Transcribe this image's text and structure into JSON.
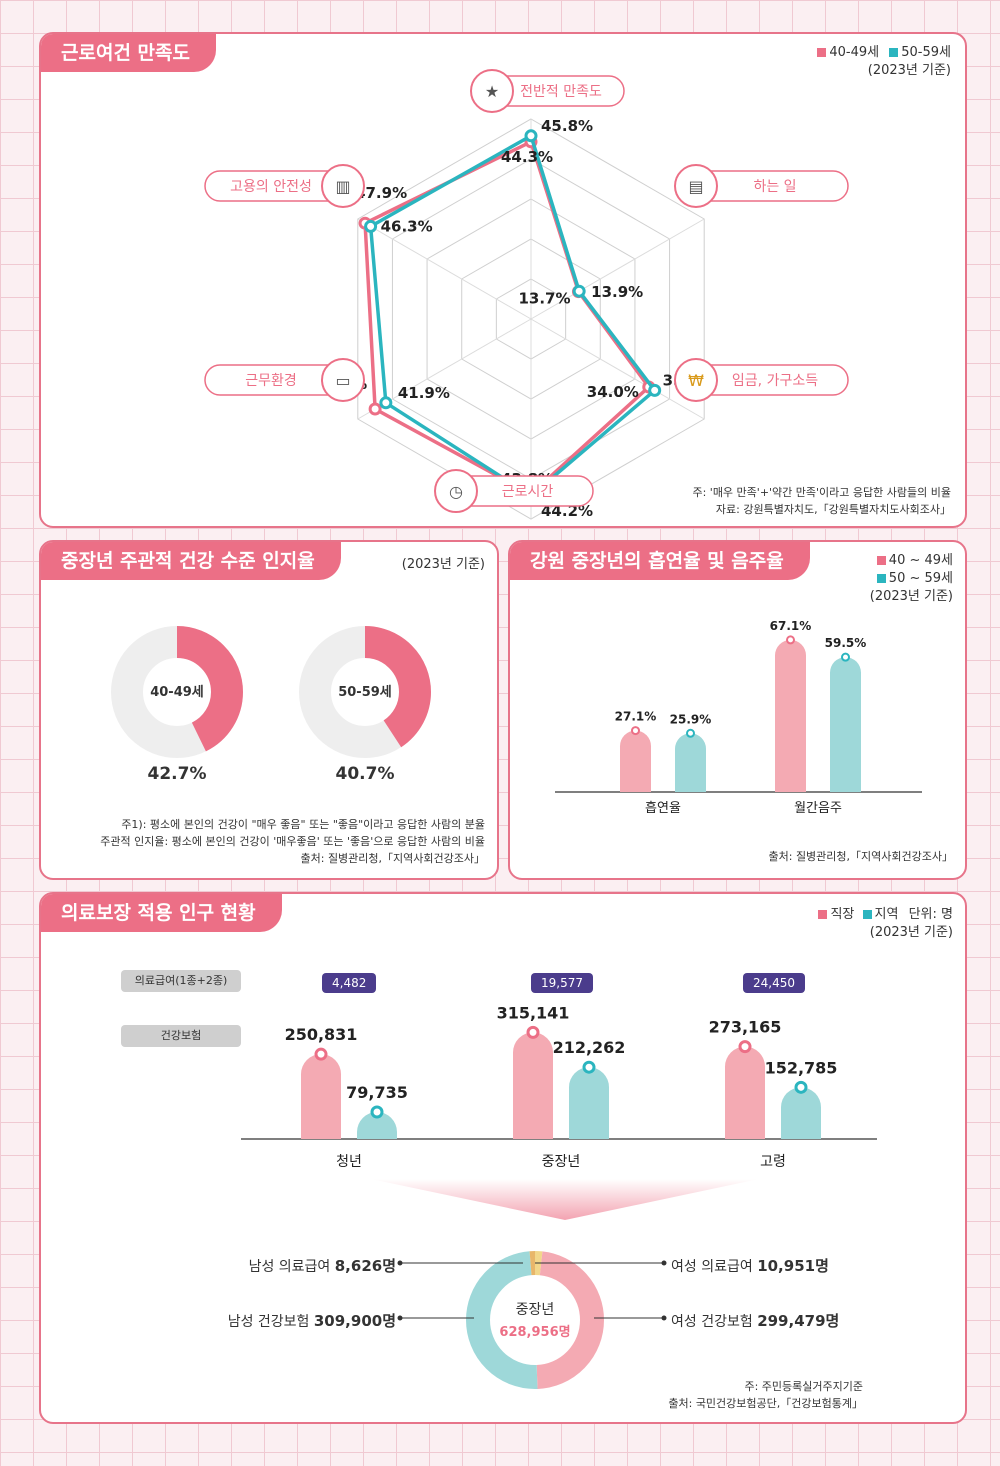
{
  "colors": {
    "pink": "#ec6f86",
    "pink_light": "#f4aab3",
    "teal": "#2bb5bf",
    "teal_light": "#9ed8d9",
    "purple": "#4b3c8c"
  },
  "panel1": {
    "title": "근로여건 만족도",
    "legend": [
      {
        "label": "40-49세",
        "color": "#ec6f86"
      },
      {
        "label": "50-59세",
        "color": "#2bb5bf"
      }
    ],
    "year": "(2023년 기준)",
    "note1": "주: '매우 만족'+'약간 만족'이라고 응답한 사람들의 비율",
    "note2": "자료: 강원특별자치도,「강원특별자치도사회조사」"
  },
  "chart_data": [
    {
      "type": "radar",
      "title": "근로여건 만족도",
      "axes": [
        "전반적 만족도",
        "하는 일",
        "임금, 가구소득",
        "근로시간",
        "근무환경",
        "고용의 안전성"
      ],
      "axis_icons": [
        "thumbs-up-icon",
        "document-icon",
        "coin-icon",
        "clock-icon",
        "monitor-icon",
        "chart-icon"
      ],
      "series": [
        {
          "name": "40-49세",
          "values": [
            44.3,
            13.7,
            34.0,
            43.8,
            45.0,
            47.9
          ],
          "labels": [
            "44.3%",
            "13.7%",
            "34.0%",
            "43.8%",
            "45.0%",
            "47.9%"
          ]
        },
        {
          "name": "50-59세",
          "values": [
            45.8,
            13.9,
            35.7,
            44.2,
            41.9,
            46.3
          ],
          "labels": [
            "45.8%",
            "13.9%",
            "35.7%",
            "44.2%",
            "41.9%",
            "46.3%"
          ]
        }
      ],
      "rmax": 50
    },
    {
      "type": "donut",
      "title": "중장년 주관적 건강 수준 인지율",
      "categories": [
        "40-49세",
        "50-59세"
      ],
      "values": [
        42.7,
        40.7
      ],
      "labels": [
        "42.7%",
        "40.7%"
      ]
    },
    {
      "type": "bar",
      "title": "강원 중장년의 흡연율 및 음주율",
      "categories": [
        "흡연율",
        "월간음주"
      ],
      "series": [
        {
          "name": "40 ~ 49세",
          "values": [
            27.1,
            67.1
          ],
          "labels": [
            "27.1%",
            "67.1%"
          ]
        },
        {
          "name": "50 ~ 59세",
          "values": [
            25.9,
            59.5
          ],
          "labels": [
            "25.9%",
            "59.5%"
          ]
        }
      ],
      "ylim": [
        0,
        75
      ]
    },
    {
      "type": "bar",
      "title": "의료보장 적용 인구 현황",
      "categories": [
        "청년",
        "중장년",
        "고령"
      ],
      "series": [
        {
          "name": "직장",
          "values": [
            250831,
            315141,
            273165
          ],
          "labels": [
            "250,831",
            "315,141",
            "273,165"
          ]
        },
        {
          "name": "지역",
          "values": [
            79735,
            212262,
            152785
          ],
          "labels": [
            "79,735",
            "212,262",
            "152,785"
          ]
        }
      ],
      "medical_aid": {
        "values": [
          4482,
          19577,
          24450
        ],
        "labels": [
          "4,482",
          "19,577",
          "24,450"
        ]
      },
      "ylim": [
        0,
        340000
      ]
    },
    {
      "type": "pie",
      "title": "중장년",
      "categories": [
        "남성 의료급여",
        "여성 의료급여",
        "여성 건강보험",
        "남성 건강보험"
      ],
      "values": [
        8626,
        10951,
        299479,
        309900
      ],
      "total": 628956
    }
  ],
  "panel2": {
    "title": "중장년 주관적 건강 수준 인지율",
    "year": "(2023년 기준)",
    "note1": "주1): 평소에 본인의 건강이 \"매우 좋음\" 또는 \"좋음\"이라고 응답한 사람의 분율",
    "note2": "주관적 인지율: 평소에 본인의 건강이 '매우좋음' 또는 '좋음'으로 응답한 사람의 비율",
    "note3": "출처: 질병관리청,「지역사회건강조사」"
  },
  "panel3": {
    "title": "강원 중장년의 흡연율 및 음주율",
    "legend": [
      {
        "label": "40 ~ 49세",
        "color": "#ec6f86"
      },
      {
        "label": "50 ~ 59세",
        "color": "#2bb5bf"
      }
    ],
    "year": "(2023년 기준)",
    "note": "출처: 질병관리청,「지역사회건강조사」"
  },
  "panel4": {
    "title": "의료보장 적용 인구 현황",
    "legend": [
      {
        "label": "직장",
        "color": "#ec6f86"
      },
      {
        "label": "지역",
        "color": "#2bb5bf"
      }
    ],
    "unit": "단위: 명",
    "year": "(2023년 기준)",
    "row_label_aid": "의료급여(1종+2종)",
    "row_label_insurance": "건강보험",
    "donut_title": "중장년",
    "donut_total": "628,956명",
    "callouts": {
      "male_aid": {
        "label": "남성 의료급여",
        "value": "8,626명"
      },
      "female_aid": {
        "label": "여성 의료급여",
        "value": "10,951명"
      },
      "male_ins": {
        "label": "남성 건강보험",
        "value": "309,900명"
      },
      "female_ins": {
        "label": "여성 건강보험",
        "value": "299,479명"
      }
    },
    "note1": "주: 주민등록실거주지기준",
    "note2": "출처: 국민건강보험공단,「건강보험통계」"
  }
}
